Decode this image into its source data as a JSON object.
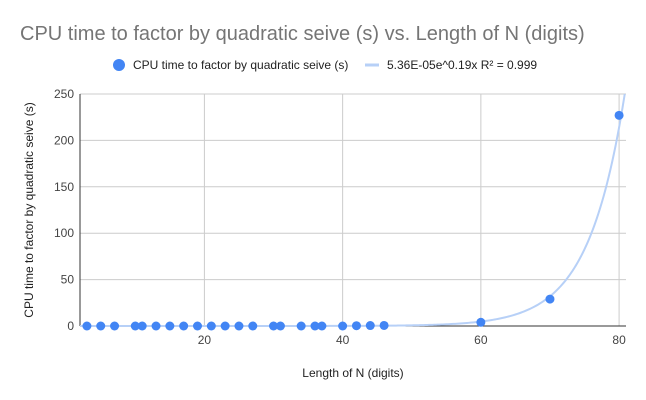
{
  "chart_data": {
    "type": "scatter",
    "title": "CPU time to factor by quadratic seive (s) vs. Length of N (digits)",
    "xlabel": "Length of N (digits)",
    "ylabel": "CPU time to factor by quadratic seive (s)",
    "xlim": [
      2,
      81
    ],
    "ylim": [
      0,
      250
    ],
    "xticks": [
      20,
      40,
      60,
      80
    ],
    "yticks": [
      0,
      50,
      100,
      150,
      200,
      250
    ],
    "grid": true,
    "legend_position": "top",
    "series": [
      {
        "name": "CPU time to factor by quadratic seive (s)",
        "color": "#4285f4",
        "x": [
          3,
          5,
          7,
          10,
          11,
          13,
          15,
          17,
          19,
          21,
          23,
          25,
          27,
          30,
          31,
          34,
          36,
          37,
          40,
          42,
          44,
          46,
          60,
          70,
          80
        ],
        "y": [
          0,
          0,
          0,
          0,
          0,
          0,
          0,
          0,
          0,
          0,
          0,
          0,
          0,
          0,
          0,
          0,
          0,
          0,
          0,
          0.3,
          0.5,
          0.6,
          4,
          29,
          227
        ]
      }
    ],
    "trendline": {
      "type": "exponential",
      "label": "5.36E-05e^0.19x R² = 0.999",
      "color": "#b7d0f7",
      "a": 5.36e-05,
      "b": 0.19
    }
  }
}
